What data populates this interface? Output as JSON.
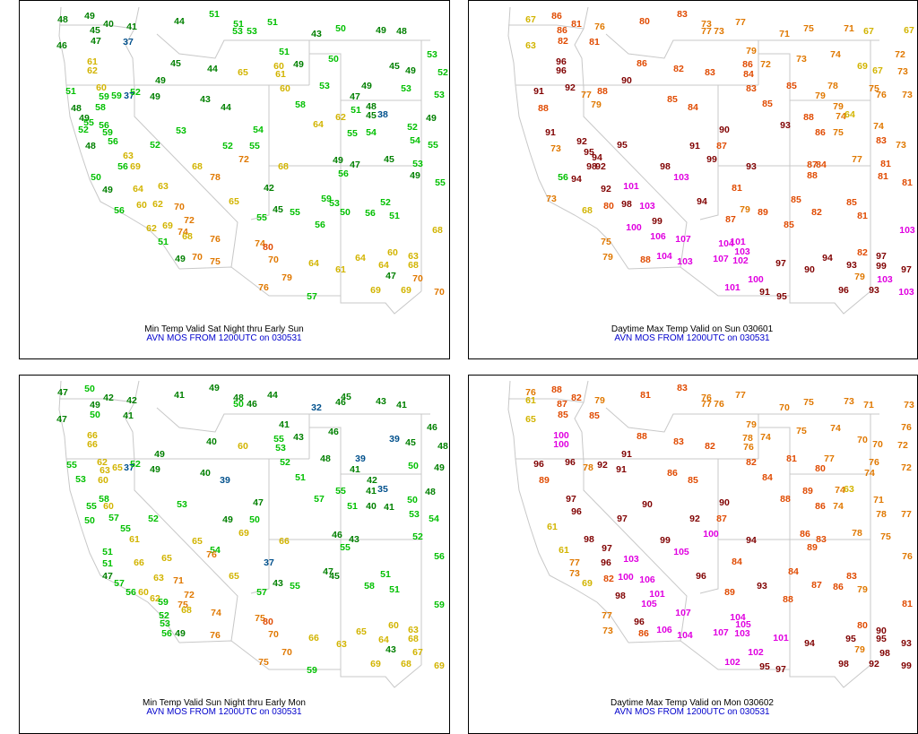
{
  "panels": [
    {
      "title": "Min Temp Valid Sat Night thru Early Sun",
      "subtitle": "AVN MOS FROM 1200UTC on 030531",
      "values": [
        48,
        49,
        40,
        41,
        44,
        51,
        51,
        53,
        53,
        51,
        43,
        50,
        49,
        48,
        46,
        45,
        47,
        37,
        51,
        49,
        50,
        53,
        52,
        61,
        62,
        45,
        44,
        65,
        60,
        61,
        45,
        49,
        51,
        60,
        59,
        59,
        37,
        52,
        49,
        49,
        43,
        60,
        53,
        49,
        47,
        48,
        51,
        45,
        38,
        53,
        53,
        49,
        58,
        44,
        48,
        49,
        58,
        55,
        56,
        52,
        59,
        56,
        48,
        52,
        53,
        62,
        55,
        54,
        64,
        52,
        54,
        55,
        54,
        55,
        52,
        63,
        56,
        69,
        72,
        68,
        68,
        49,
        47,
        45,
        53,
        56,
        49,
        55,
        50,
        49,
        64,
        78,
        63,
        42,
        56,
        60,
        62,
        70,
        65,
        59,
        53,
        50,
        56,
        52,
        51,
        45,
        55,
        55,
        56,
        72,
        62,
        69,
        74,
        68,
        51,
        76,
        74,
        80,
        68,
        60,
        63,
        64,
        64,
        68,
        70,
        75,
        70,
        64,
        61,
        49,
        70,
        79,
        47,
        76,
        69,
        69,
        70,
        57
      ]
    },
    {
      "title": "Daytime Max Temp Valid on Sun 030601",
      "subtitle": "AVN MOS FROM 1200UTC on 030531",
      "values": [
        67,
        86,
        81,
        76,
        80,
        83,
        73,
        77,
        73,
        77,
        71,
        75,
        71,
        67,
        67,
        63,
        86,
        82,
        81,
        79,
        86,
        84,
        72,
        73,
        74,
        69,
        67,
        72,
        73,
        96,
        96,
        86,
        82,
        83,
        85,
        79,
        78,
        75,
        76,
        73,
        91,
        92,
        90,
        83,
        88,
        79,
        74,
        64,
        85,
        85,
        84,
        93,
        90,
        91,
        87,
        99,
        93,
        86,
        75,
        74,
        83,
        73,
        91,
        92,
        95,
        95,
        94,
        98,
        98,
        92,
        88,
        79,
        77,
        88,
        87,
        84,
        77,
        81,
        88,
        81,
        81,
        56,
        94,
        92,
        101,
        103,
        103,
        81,
        94,
        80,
        98,
        87,
        79,
        89,
        85,
        82,
        85,
        81,
        85,
        99,
        68,
        73,
        100,
        106,
        107,
        104,
        101,
        103,
        107,
        102,
        97,
        90,
        94,
        93,
        82,
        97,
        99,
        97,
        103,
        100,
        103,
        79,
        101,
        91,
        95,
        96,
        93,
        103,
        88,
        104,
        103,
        75,
        79,
        73
      ]
    },
    {
      "title": "Min Temp Valid Sun Night thru Early Mon",
      "subtitle": "AVN MOS FROM 1200UTC on 030531",
      "values": [
        47,
        50,
        42,
        42,
        41,
        49,
        48,
        50,
        46,
        44,
        32,
        45,
        46,
        43,
        41,
        47,
        49,
        50,
        41,
        41,
        43,
        46,
        46,
        48,
        66,
        66,
        49,
        40,
        60,
        55,
        53,
        39,
        45,
        55,
        62,
        63,
        65,
        37,
        52,
        49,
        40,
        39,
        52,
        51,
        48,
        39,
        41,
        42,
        41,
        35,
        50,
        49,
        48,
        50,
        53,
        54,
        57,
        55,
        51,
        40,
        41,
        46,
        43,
        52,
        56,
        53,
        60,
        58,
        60,
        55,
        50,
        57,
        52,
        53,
        47,
        50,
        49,
        65,
        69,
        66,
        55,
        61,
        65,
        54,
        76,
        37,
        55,
        51,
        51,
        66,
        63,
        71,
        47,
        57,
        47,
        45,
        51,
        51,
        58,
        60,
        59,
        57,
        43,
        55,
        65,
        72,
        56,
        60,
        62,
        59,
        74,
        75,
        68,
        52,
        53,
        56,
        49,
        75,
        80,
        70,
        66,
        63,
        65,
        64,
        68,
        63,
        67,
        70,
        75,
        59,
        69,
        68,
        69,
        43,
        76
      ]
    },
    {
      "title": "Daytime Max Temp Valid on Mon 030602",
      "subtitle": "AVN MOS FROM 1200UTC on 030531",
      "values": [
        76,
        61,
        88,
        82,
        79,
        81,
        83,
        76,
        77,
        76,
        77,
        70,
        75,
        73,
        71,
        73,
        65,
        87,
        85,
        85,
        100,
        100,
        79,
        78,
        76,
        74,
        75,
        74,
        70,
        70,
        76,
        72,
        88,
        83,
        82,
        91,
        96,
        96,
        92,
        78,
        91,
        82,
        81,
        77,
        80,
        76,
        72,
        86,
        85,
        84,
        89,
        74,
        63,
        74,
        71,
        90,
        90,
        92,
        87,
        88,
        86,
        74,
        78,
        77,
        100,
        94,
        86,
        83,
        78,
        75,
        89,
        76,
        97,
        96,
        99,
        105,
        103,
        96,
        84,
        93,
        89,
        84,
        87,
        83,
        86,
        79,
        88,
        98,
        97,
        96,
        82,
        98,
        100,
        106,
        101,
        106,
        105,
        107,
        104,
        105,
        107,
        103,
        101,
        94,
        95,
        80,
        90,
        95,
        93,
        81,
        102,
        98,
        79,
        102,
        95,
        97,
        98,
        92,
        99,
        86,
        104,
        77,
        96,
        73,
        61,
        77,
        73,
        69,
        61,
        89,
        97
      ]
    }
  ]
}
